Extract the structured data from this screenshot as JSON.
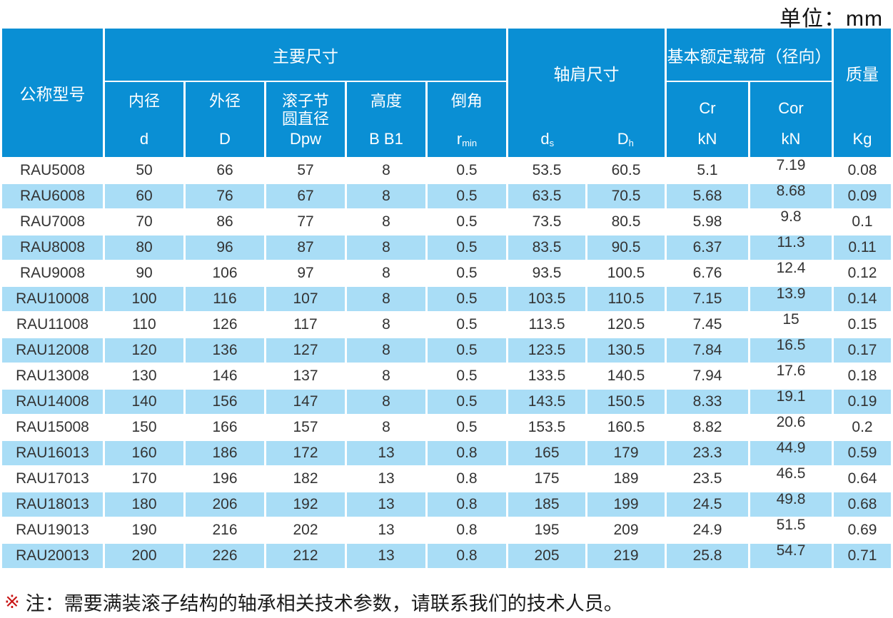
{
  "unit_label": "单位：mm",
  "colors": {
    "header_blue": "#0a8fd4",
    "row_stripe": "#a9ddf6",
    "body_text": "#333333",
    "note_mark_red": "#c81414"
  },
  "header": {
    "model_label": "公称型号",
    "main_group_label": "主要尺寸",
    "main_cols": [
      {
        "name": "内径",
        "symbol": "d"
      },
      {
        "name": "外径",
        "symbol": "D"
      },
      {
        "name": "滚子节\n圆直径",
        "symbol": "Dpw"
      },
      {
        "name": "高度",
        "symbol": "B B1"
      },
      {
        "name": "倒角",
        "symbol_base": "r",
        "symbol_sub": "min"
      }
    ],
    "shoulder_group_label": "轴肩尺寸",
    "shoulder_cols": [
      {
        "symbol_base": "d",
        "symbol_sub": "s"
      },
      {
        "symbol_base": "D",
        "symbol_sub": "h"
      }
    ],
    "load_group_label": "基本额定载荷（径向）",
    "load_cols": [
      {
        "symbol": "Cr",
        "unit": "kN"
      },
      {
        "symbol": "Cor",
        "unit": "kN"
      }
    ],
    "mass_label": "质量",
    "mass_unit": "Kg"
  },
  "table": {
    "column_keys": [
      "model",
      "d",
      "D",
      "Dpw",
      "B",
      "r-min",
      "ds",
      "Dh",
      "Cr",
      "Cor",
      "mass"
    ],
    "rows": [
      [
        "RAU5008",
        "50",
        "66",
        "57",
        "8",
        "0.5",
        "53.5",
        "60.5",
        "5.1",
        "7.19",
        "0.08"
      ],
      [
        "RAU6008",
        "60",
        "76",
        "67",
        "8",
        "0.5",
        "63.5",
        "70.5",
        "5.68",
        "8.68",
        "0.09"
      ],
      [
        "RAU7008",
        "70",
        "86",
        "77",
        "8",
        "0.5",
        "73.5",
        "80.5",
        "5.98",
        "9.8",
        "0.1"
      ],
      [
        "RAU8008",
        "80",
        "96",
        "87",
        "8",
        "0.5",
        "83.5",
        "90.5",
        "6.37",
        "11.3",
        "0.11"
      ],
      [
        "RAU9008",
        "90",
        "106",
        "97",
        "8",
        "0.5",
        "93.5",
        "100.5",
        "6.76",
        "12.4",
        "0.12"
      ],
      [
        "RAU10008",
        "100",
        "116",
        "107",
        "8",
        "0.5",
        "103.5",
        "110.5",
        "7.15",
        "13.9",
        "0.14"
      ],
      [
        "RAU11008",
        "110",
        "126",
        "117",
        "8",
        "0.5",
        "113.5",
        "120.5",
        "7.45",
        "15",
        "0.15"
      ],
      [
        "RAU12008",
        "120",
        "136",
        "127",
        "8",
        "0.5",
        "123.5",
        "130.5",
        "7.84",
        "16.5",
        "0.17"
      ],
      [
        "RAU13008",
        "130",
        "146",
        "137",
        "8",
        "0.5",
        "133.5",
        "140.5",
        "7.94",
        "17.6",
        "0.18"
      ],
      [
        "RAU14008",
        "140",
        "156",
        "147",
        "8",
        "0.5",
        "143.5",
        "150.5",
        "8.33",
        "19.1",
        "0.19"
      ],
      [
        "RAU15008",
        "150",
        "166",
        "157",
        "8",
        "0.5",
        "153.5",
        "160.5",
        "8.82",
        "20.6",
        "0.2"
      ],
      [
        "RAU16013",
        "160",
        "186",
        "172",
        "13",
        "0.8",
        "165",
        "179",
        "23.3",
        "44.9",
        "0.59"
      ],
      [
        "RAU17013",
        "170",
        "196",
        "182",
        "13",
        "0.8",
        "175",
        "189",
        "23.5",
        "46.5",
        "0.64"
      ],
      [
        "RAU18013",
        "180",
        "206",
        "192",
        "13",
        "0.8",
        "185",
        "199",
        "24.5",
        "49.8",
        "0.68"
      ],
      [
        "RAU19013",
        "190",
        "216",
        "202",
        "13",
        "0.8",
        "195",
        "209",
        "24.9",
        "51.5",
        "0.69"
      ],
      [
        "RAU20013",
        "200",
        "226",
        "212",
        "13",
        "0.8",
        "205",
        "219",
        "25.8",
        "54.7",
        "0.71"
      ]
    ]
  },
  "note": {
    "mark": "※",
    "text": "注：需要满装滚子结构的轴承相关技术参数，请联系我们的技术人员。"
  }
}
